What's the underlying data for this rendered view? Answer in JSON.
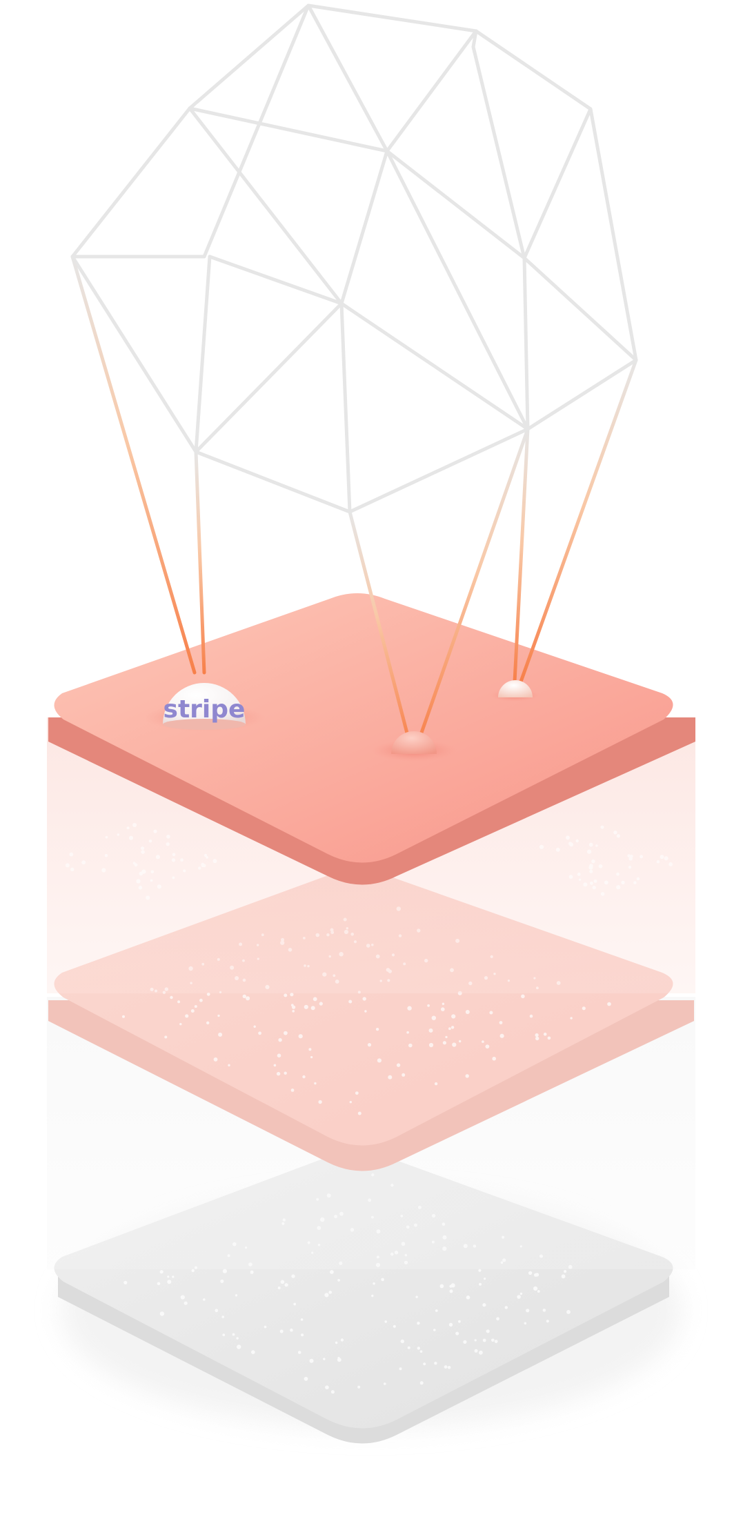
{
  "logo": {
    "text": "stripe",
    "color": "#8f87cf"
  },
  "colors": {
    "wireframe": "#e6e6e6",
    "top_plate_light": "#fcc2b4",
    "top_plate_dark": "#f8968a",
    "top_plate_edge": "#e4877b",
    "middle_plate": "#fad3cc",
    "middle_plate_edge": "#f2c3ba",
    "bottom_plate": "#e6e6e6",
    "bottom_plate_edge": "#dcdcdc",
    "thread_orange": "#f8834f",
    "thread_peach": "#f9b88c"
  },
  "elements": {
    "wireframe": "polyhedron-wireframe-icon",
    "nodes": [
      "stripe-logo-node",
      "small-sphere-node",
      "small-sphere-node"
    ],
    "layers": [
      "top-plate",
      "middle-plate",
      "bottom-plate"
    ]
  }
}
